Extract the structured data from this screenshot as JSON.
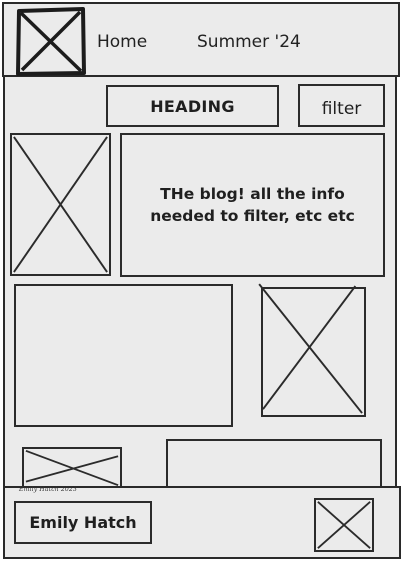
{
  "header": {
    "logo_icon": "image-placeholder-icon",
    "nav": [
      {
        "label": "Home"
      },
      {
        "label": "Summer '24"
      }
    ]
  },
  "toolbar": {
    "heading": "HEADING",
    "filter_label": "filter"
  },
  "blog": {
    "intro": "THe blog! all the info needed to filter, etc etc"
  },
  "footer": {
    "author_name": "Emily Hatch",
    "signature": "Emily Hatch 2023",
    "image_icon": "image-placeholder-icon"
  }
}
